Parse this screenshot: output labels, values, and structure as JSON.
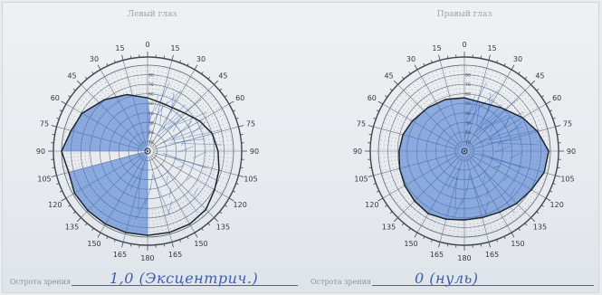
{
  "left_eye": {
    "title": "Левый глаз",
    "outer_labels": [
      "0",
      "15",
      "30",
      "45",
      "60",
      "75",
      "90",
      "105",
      "120",
      "135",
      "150",
      "165",
      "180",
      "165",
      "150",
      "135",
      "120",
      "105",
      "90",
      "75",
      "60",
      "45",
      "30",
      "15"
    ],
    "field_color": "#3f74cf",
    "acuity_label": "Острота зрения",
    "acuity_value": "1,0 (Эксцентрич.)"
  },
  "right_eye": {
    "title": "Правый глаз",
    "outer_labels": [
      "0",
      "15",
      "30",
      "45",
      "60",
      "75",
      "90",
      "105",
      "120",
      "135",
      "150",
      "165",
      "180",
      "165",
      "150",
      "135",
      "120",
      "105",
      "90",
      "75",
      "60",
      "45",
      "30",
      "15"
    ],
    "field_color": "#3f74cf",
    "acuity_label": "Острота зрения",
    "acuity_value": "0 (нуль)"
  }
}
